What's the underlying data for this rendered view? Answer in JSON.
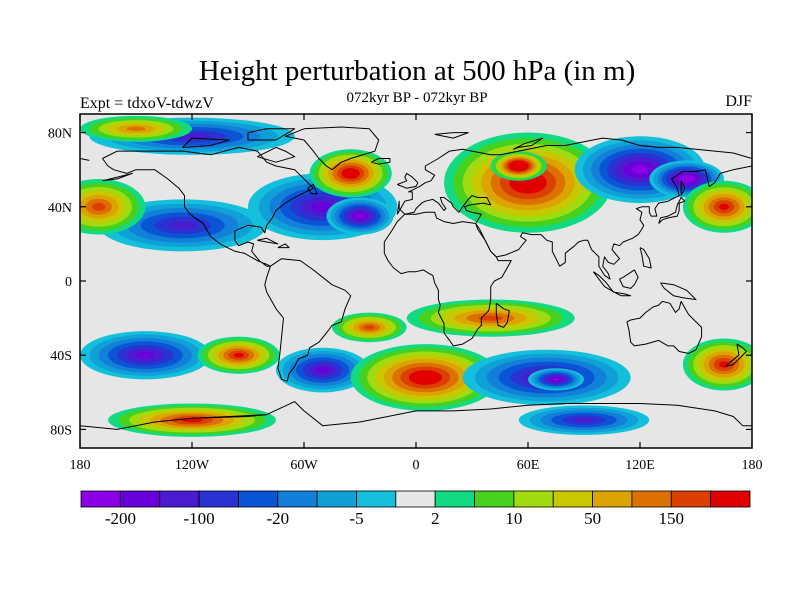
{
  "title": "Height perturbation at 500 hPa (in m)",
  "left_label": "Expt = tdxoV-tdwzV",
  "center_label": "072kyr BP - 072kyr BP",
  "right_label": "DJF",
  "map": {
    "lon_range": [
      -180,
      180
    ],
    "lat_range": [
      -90,
      90
    ],
    "x_ticks": [
      {
        "lon": -180,
        "label": "180"
      },
      {
        "lon": -120,
        "label": "120W"
      },
      {
        "lon": -60,
        "label": "60W"
      },
      {
        "lon": 0,
        "label": "0"
      },
      {
        "lon": 60,
        "label": "60E"
      },
      {
        "lon": 120,
        "label": "120E"
      },
      {
        "lon": 180,
        "label": "180"
      }
    ],
    "y_ticks": [
      {
        "lat": 80,
        "label": "80N"
      },
      {
        "lat": 40,
        "label": "40N"
      },
      {
        "lat": 0,
        "label": "0"
      },
      {
        "lat": -40,
        "label": "40S"
      },
      {
        "lat": -80,
        "label": "80S"
      }
    ],
    "fill_anomalies": [
      {
        "lon": -120,
        "lat": 78,
        "rx": 55,
        "ry": 10,
        "level": -6
      },
      {
        "lon": -150,
        "lat": 82,
        "rx": 30,
        "ry": 7,
        "level": 6
      },
      {
        "lon": -50,
        "lat": 40,
        "rx": 40,
        "ry": 18,
        "level": -7
      },
      {
        "lon": -30,
        "lat": 35,
        "rx": 18,
        "ry": 10,
        "level": -8
      },
      {
        "lon": -125,
        "lat": 30,
        "rx": 45,
        "ry": 14,
        "level": -6
      },
      {
        "lon": -170,
        "lat": 40,
        "rx": 25,
        "ry": 15,
        "level": 7
      },
      {
        "lon": -35,
        "lat": 58,
        "rx": 22,
        "ry": 13,
        "level": 9
      },
      {
        "lon": 60,
        "lat": 53,
        "rx": 45,
        "ry": 27,
        "level": 9
      },
      {
        "lon": 55,
        "lat": 62,
        "rx": 15,
        "ry": 8,
        "level": 11
      },
      {
        "lon": 120,
        "lat": 60,
        "rx": 35,
        "ry": 18,
        "level": -8
      },
      {
        "lon": 145,
        "lat": 55,
        "rx": 20,
        "ry": 10,
        "level": -9
      },
      {
        "lon": 165,
        "lat": 40,
        "rx": 22,
        "ry": 14,
        "level": 8
      },
      {
        "lon": 40,
        "lat": -20,
        "rx": 45,
        "ry": 10,
        "level": 7
      },
      {
        "lon": -25,
        "lat": -25,
        "rx": 20,
        "ry": 8,
        "level": 7
      },
      {
        "lon": -145,
        "lat": -40,
        "rx": 35,
        "ry": 13,
        "level": -7
      },
      {
        "lon": -95,
        "lat": -40,
        "rx": 22,
        "ry": 10,
        "level": 8
      },
      {
        "lon": -50,
        "lat": -48,
        "rx": 25,
        "ry": 12,
        "level": -7
      },
      {
        "lon": 5,
        "lat": -52,
        "rx": 40,
        "ry": 18,
        "level": 9
      },
      {
        "lon": 70,
        "lat": -52,
        "rx": 45,
        "ry": 15,
        "level": -7
      },
      {
        "lon": 75,
        "lat": -53,
        "rx": 15,
        "ry": 6,
        "level": -8
      },
      {
        "lon": 165,
        "lat": -45,
        "rx": 22,
        "ry": 14,
        "level": 8
      },
      {
        "lon": -120,
        "lat": -75,
        "rx": 45,
        "ry": 9,
        "level": 8
      },
      {
        "lon": 90,
        "lat": -75,
        "rx": 35,
        "ry": 8,
        "level": -6
      }
    ]
  },
  "colorbar": {
    "colors": [
      "#8b00e5",
      "#6a00d9",
      "#4a1bcf",
      "#2a32d1",
      "#0a55d5",
      "#127fd9",
      "#0fa0d8",
      "#14bfdc",
      "#e6e6e6",
      "#12da82",
      "#45d11e",
      "#9fdb10",
      "#c9c800",
      "#dca400",
      "#dc7100",
      "#dc4000",
      "#e10000"
    ],
    "labels": [
      {
        "boundary": 1,
        "text": "-200"
      },
      {
        "boundary": 3,
        "text": "-100"
      },
      {
        "boundary": 5,
        "text": "-20"
      },
      {
        "boundary": 7,
        "text": "-5"
      },
      {
        "boundary": 9,
        "text": "2"
      },
      {
        "boundary": 11,
        "text": "10"
      },
      {
        "boundary": 13,
        "text": "50"
      },
      {
        "boundary": 15,
        "text": "150"
      }
    ]
  }
}
